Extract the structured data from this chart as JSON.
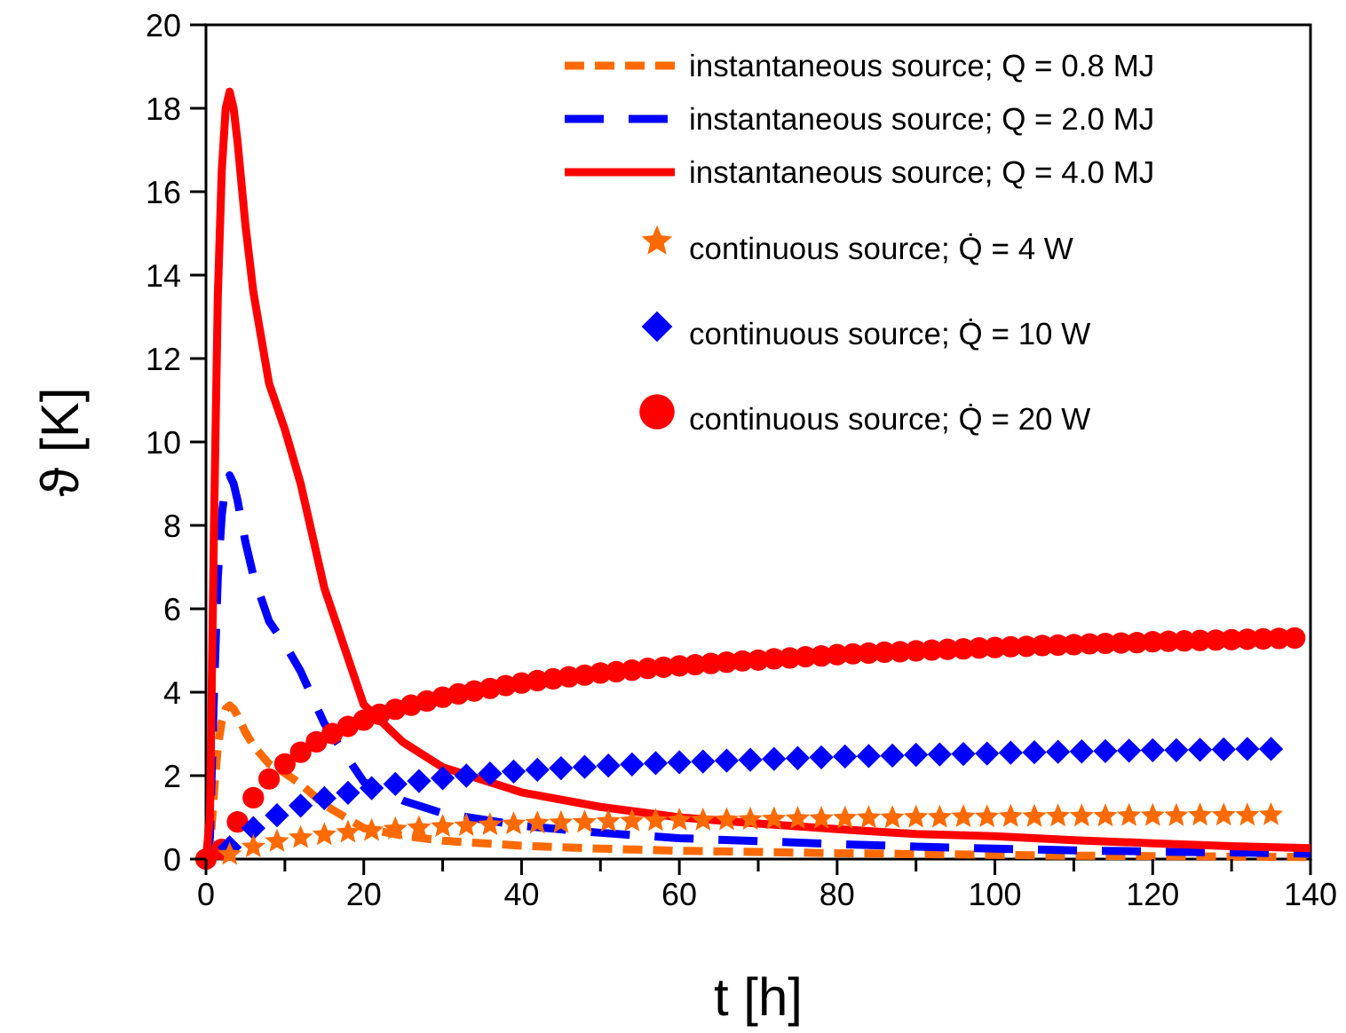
{
  "chart_data": {
    "type": "line",
    "xlabel": "t [h]",
    "ylabel": "ϑ [K]",
    "xlim": [
      0,
      140
    ],
    "ylim": [
      0,
      20
    ],
    "xticks": [
      0,
      {
        "value": 10,
        "label": null
      },
      20,
      {
        "value": 30,
        "label": null
      },
      40,
      {
        "value": 50,
        "label": null
      },
      60,
      {
        "value": 70,
        "label": null
      },
      80,
      {
        "value": 90,
        "label": null
      },
      100,
      {
        "value": 110,
        "label": null
      },
      120,
      {
        "value": 130,
        "label": null
      },
      140
    ],
    "yticks": [
      0,
      2,
      4,
      6,
      8,
      10,
      12,
      14,
      16,
      18,
      20
    ],
    "grid": false,
    "legend": "top right",
    "x": [
      0,
      0.5,
      1,
      1.5,
      2,
      2.5,
      3,
      3.5,
      4,
      5,
      6,
      7,
      8,
      10,
      12,
      15,
      20,
      25,
      30,
      40,
      50,
      60,
      70,
      80,
      90,
      100,
      110,
      120,
      130,
      140
    ],
    "series": [
      {
        "name": "instantaneous source; Q = 0.8 MJ",
        "line_style": "dashed",
        "color": "#ff6a00",
        "values": [
          0,
          0.2,
          1.56,
          2.7,
          3.3,
          3.6,
          3.68,
          3.6,
          3.44,
          3.04,
          2.72,
          2.5,
          2.28,
          2.06,
          1.8,
          1.3,
          0.74,
          0.56,
          0.44,
          0.32,
          0.25,
          0.2,
          0.17,
          0.14,
          0.12,
          0.1,
          0.08,
          0.07,
          0.06,
          0.05
        ]
      },
      {
        "name": "instantaneous source; Q = 2.0 MJ",
        "line_style": "dashed",
        "color": "#0000ff",
        "values": [
          0,
          0.5,
          3.9,
          6.75,
          8.25,
          9.0,
          9.2,
          9.0,
          8.6,
          7.6,
          6.8,
          6.25,
          5.7,
          5.15,
          4.5,
          3.25,
          1.85,
          1.4,
          1.1,
          0.8,
          0.63,
          0.5,
          0.43,
          0.36,
          0.3,
          0.25,
          0.21,
          0.18,
          0.16,
          0.13
        ]
      },
      {
        "name": "instantaneous source; Q = 4.0 MJ",
        "line_style": "solid",
        "color": "#ff0000",
        "values": [
          0,
          1.0,
          7.8,
          13.5,
          16.5,
          18.0,
          18.4,
          18.0,
          17.2,
          15.2,
          13.6,
          12.5,
          11.4,
          10.3,
          9.0,
          6.5,
          3.7,
          2.8,
          2.2,
          1.6,
          1.25,
          1.0,
          0.85,
          0.72,
          0.6,
          0.55,
          0.45,
          0.38,
          0.31,
          0.26
        ]
      },
      {
        "name": "continuous source; Q̇ = 4 W",
        "type": "scatter",
        "marker": "star",
        "color": "#ff6a00",
        "x": [
          3,
          6,
          9,
          12,
          15,
          18,
          21,
          24,
          27,
          30,
          33,
          36,
          39,
          42,
          45,
          48,
          51,
          54,
          57,
          60,
          63,
          66,
          69,
          72,
          75,
          78,
          81,
          84,
          87,
          90,
          93,
          96,
          99,
          102,
          105,
          108,
          111,
          114,
          117,
          120,
          123,
          126,
          129,
          132,
          135
        ],
        "values": [
          0.11,
          0.29,
          0.42,
          0.51,
          0.58,
          0.64,
          0.68,
          0.72,
          0.75,
          0.78,
          0.8,
          0.82,
          0.84,
          0.86,
          0.87,
          0.88,
          0.9,
          0.91,
          0.92,
          0.93,
          0.93,
          0.94,
          0.95,
          0.96,
          0.97,
          0.97,
          0.98,
          0.99,
          0.99,
          1.0,
          1.0,
          1.01,
          1.01,
          1.02,
          1.02,
          1.03,
          1.03,
          1.03,
          1.04,
          1.04,
          1.04,
          1.05,
          1.05,
          1.05,
          1.06
        ]
      },
      {
        "name": "continuous source; Q̇ = 10 W",
        "type": "scatter",
        "marker": "diamond",
        "color": "#0000ff",
        "x": [
          3,
          6,
          9,
          12,
          15,
          18,
          21,
          24,
          27,
          30,
          33,
          36,
          39,
          42,
          45,
          48,
          51,
          54,
          57,
          60,
          63,
          66,
          69,
          72,
          75,
          78,
          81,
          84,
          87,
          90,
          93,
          96,
          99,
          102,
          105,
          108,
          111,
          114,
          117,
          120,
          123,
          126,
          129,
          132,
          135
        ],
        "values": [
          0.28,
          0.74,
          1.05,
          1.28,
          1.46,
          1.59,
          1.7,
          1.8,
          1.87,
          1.94,
          2.0,
          2.05,
          2.1,
          2.14,
          2.18,
          2.21,
          2.24,
          2.27,
          2.3,
          2.32,
          2.34,
          2.36,
          2.38,
          2.4,
          2.42,
          2.44,
          2.46,
          2.47,
          2.48,
          2.5,
          2.51,
          2.52,
          2.53,
          2.55,
          2.56,
          2.57,
          2.58,
          2.59,
          2.6,
          2.61,
          2.61,
          2.62,
          2.63,
          2.64,
          2.64
        ]
      },
      {
        "name": "continuous source; Q̇ = 20 W",
        "type": "scatter",
        "marker": "circle",
        "color": "#ff0000",
        "x": [
          0,
          2,
          4,
          6,
          8,
          10,
          12,
          14,
          16,
          18,
          20,
          22,
          24,
          26,
          28,
          30,
          32,
          34,
          36,
          38,
          40,
          42,
          44,
          46,
          48,
          50,
          52,
          54,
          56,
          58,
          60,
          62,
          64,
          66,
          68,
          70,
          72,
          74,
          76,
          78,
          80,
          82,
          84,
          86,
          88,
          90,
          92,
          94,
          96,
          98,
          100,
          102,
          104,
          106,
          108,
          110,
          112,
          114,
          116,
          118,
          120,
          122,
          124,
          126,
          128,
          130,
          132,
          134,
          136,
          138
        ],
        "values": [
          0,
          0.23,
          0.89,
          1.47,
          1.92,
          2.28,
          2.56,
          2.81,
          3.01,
          3.18,
          3.33,
          3.47,
          3.59,
          3.69,
          3.79,
          3.88,
          3.96,
          4.03,
          4.09,
          4.16,
          4.22,
          4.28,
          4.32,
          4.37,
          4.41,
          4.46,
          4.49,
          4.53,
          4.57,
          4.6,
          4.63,
          4.66,
          4.69,
          4.72,
          4.75,
          4.77,
          4.8,
          4.82,
          4.85,
          4.87,
          4.9,
          4.92,
          4.94,
          4.96,
          4.97,
          4.99,
          5.01,
          5.03,
          5.04,
          5.06,
          5.07,
          5.09,
          5.1,
          5.12,
          5.13,
          5.14,
          5.16,
          5.17,
          5.18,
          5.19,
          5.21,
          5.22,
          5.23,
          5.24,
          5.25,
          5.26,
          5.27,
          5.28,
          5.29,
          5.3
        ]
      }
    ]
  }
}
